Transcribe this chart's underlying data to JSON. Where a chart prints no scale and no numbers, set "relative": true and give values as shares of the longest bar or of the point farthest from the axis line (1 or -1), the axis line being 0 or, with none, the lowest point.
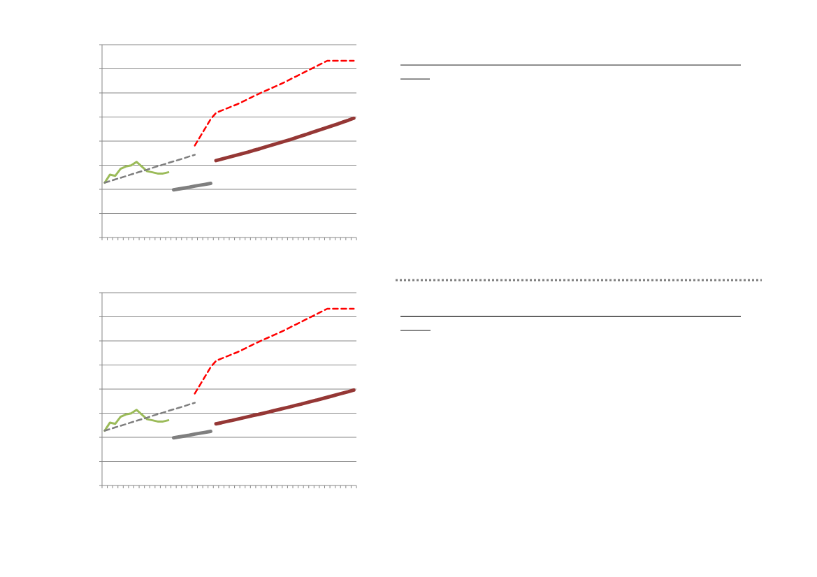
{
  "chart_data": [
    {
      "type": "line",
      "relative": true,
      "grid": "y",
      "categories": [
        null,
        null,
        null,
        null,
        null,
        null,
        null,
        null,
        null,
        null,
        null,
        null,
        null,
        null,
        null,
        null,
        null,
        null,
        null,
        null,
        null,
        null,
        null,
        null,
        null,
        null,
        null,
        null,
        null,
        null,
        null,
        null,
        null,
        null,
        null,
        null,
        null,
        null,
        null,
        null,
        null,
        null,
        null,
        null,
        null,
        null,
        null,
        null
      ],
      "series": [
        {
          "color": "#9bbb59",
          "line_style": "solid",
          "values": [
            0.31,
            0.356,
            0.349,
            0.389,
            0.402,
            0.408,
            0.428,
            0.402,
            0.375,
            0.369,
            0.362,
            0.362,
            0.369,
            null,
            null,
            null,
            null,
            null,
            null,
            null,
            null,
            null,
            null,
            null,
            null,
            null,
            null,
            null,
            null,
            null,
            null,
            null,
            null,
            null,
            null,
            null,
            null,
            null,
            null,
            null,
            null,
            null,
            null,
            null,
            null,
            null,
            null,
            null
          ]
        },
        {
          "color": "#7f7f7f",
          "line_style": "dashed",
          "values": [
            0.31,
            0.319,
            0.329,
            0.338,
            0.347,
            0.357,
            0.366,
            0.375,
            0.384,
            0.394,
            0.403,
            0.412,
            0.422,
            0.431,
            0.44,
            0.449,
            0.459,
            0.468,
            null,
            null,
            null,
            null,
            null,
            null,
            null,
            null,
            null,
            null,
            null,
            null,
            null,
            null,
            null,
            null,
            null,
            null,
            null,
            null,
            null,
            null,
            null,
            null,
            null,
            null,
            null,
            null,
            null,
            null
          ]
        },
        {
          "color": "#ff0000",
          "line_style": "dashed",
          "values": [
            null,
            null,
            null,
            null,
            null,
            null,
            null,
            null,
            null,
            null,
            null,
            null,
            null,
            null,
            null,
            null,
            null,
            0.52,
            0.57,
            0.62,
            0.67,
            0.705,
            0.718,
            0.73,
            0.742,
            0.754,
            0.768,
            0.783,
            0.798,
            0.812,
            0.826,
            0.839,
            0.852,
            0.865,
            0.88,
            0.895,
            0.91,
            0.925,
            0.94,
            0.955,
            0.97,
            0.985,
            1.0,
            1.0,
            1.0,
            1.0,
            1.0,
            1.0
          ]
        },
        {
          "color": "#7f7f7f",
          "line_style": "solid",
          "values": [
            null,
            null,
            null,
            null,
            null,
            null,
            null,
            null,
            null,
            null,
            null,
            null,
            null,
            0.27,
            0.275,
            0.28,
            0.285,
            0.291,
            0.296,
            0.301,
            0.306,
            null,
            null,
            null,
            null,
            null,
            null,
            null,
            null,
            null,
            null,
            null,
            null,
            null,
            null,
            null,
            null,
            null,
            null,
            null,
            null,
            null,
            null,
            null,
            null,
            null,
            null,
            null
          ]
        },
        {
          "color": "#953735",
          "line_style": "solid",
          "values": [
            null,
            null,
            null,
            null,
            null,
            null,
            null,
            null,
            null,
            null,
            null,
            null,
            null,
            null,
            null,
            null,
            null,
            null,
            null,
            null,
            null,
            0.435,
            0.443,
            0.451,
            0.459,
            0.467,
            0.475,
            0.483,
            0.492,
            0.5,
            0.509,
            0.518,
            0.527,
            0.536,
            0.545,
            0.554,
            0.564,
            0.574,
            0.583,
            0.593,
            0.603,
            0.613,
            0.623,
            0.633,
            0.643,
            0.654,
            0.664,
            0.675
          ]
        }
      ]
    },
    {
      "type": "line",
      "relative": true,
      "grid": "y",
      "categories": [
        null,
        null,
        null,
        null,
        null,
        null,
        null,
        null,
        null,
        null,
        null,
        null,
        null,
        null,
        null,
        null,
        null,
        null,
        null,
        null,
        null,
        null,
        null,
        null,
        null,
        null,
        null,
        null,
        null,
        null,
        null,
        null,
        null,
        null,
        null,
        null,
        null,
        null,
        null,
        null,
        null,
        null,
        null,
        null,
        null,
        null,
        null,
        null
      ],
      "series": [
        {
          "color": "#9bbb59",
          "line_style": "solid",
          "values": [
            0.31,
            0.356,
            0.349,
            0.389,
            0.402,
            0.408,
            0.428,
            0.402,
            0.375,
            0.369,
            0.362,
            0.362,
            0.369,
            null,
            null,
            null,
            null,
            null,
            null,
            null,
            null,
            null,
            null,
            null,
            null,
            null,
            null,
            null,
            null,
            null,
            null,
            null,
            null,
            null,
            null,
            null,
            null,
            null,
            null,
            null,
            null,
            null,
            null,
            null,
            null,
            null,
            null,
            null
          ]
        },
        {
          "color": "#7f7f7f",
          "line_style": "dashed",
          "values": [
            0.31,
            0.319,
            0.329,
            0.338,
            0.347,
            0.357,
            0.366,
            0.375,
            0.384,
            0.394,
            0.403,
            0.412,
            0.422,
            0.431,
            0.44,
            0.449,
            0.459,
            0.468,
            null,
            null,
            null,
            null,
            null,
            null,
            null,
            null,
            null,
            null,
            null,
            null,
            null,
            null,
            null,
            null,
            null,
            null,
            null,
            null,
            null,
            null,
            null,
            null,
            null,
            null,
            null,
            null,
            null,
            null
          ]
        },
        {
          "color": "#ff0000",
          "line_style": "dashed",
          "values": [
            null,
            null,
            null,
            null,
            null,
            null,
            null,
            null,
            null,
            null,
            null,
            null,
            null,
            null,
            null,
            null,
            null,
            0.52,
            0.57,
            0.62,
            0.67,
            0.705,
            0.718,
            0.73,
            0.742,
            0.754,
            0.768,
            0.783,
            0.798,
            0.812,
            0.826,
            0.839,
            0.852,
            0.865,
            0.88,
            0.895,
            0.91,
            0.925,
            0.94,
            0.955,
            0.97,
            0.985,
            1.0,
            1.0,
            1.0,
            1.0,
            1.0,
            1.0
          ]
        },
        {
          "color": "#7f7f7f",
          "line_style": "solid",
          "values": [
            null,
            null,
            null,
            null,
            null,
            null,
            null,
            null,
            null,
            null,
            null,
            null,
            null,
            0.27,
            0.275,
            0.28,
            0.285,
            0.291,
            0.296,
            0.301,
            0.306,
            null,
            null,
            null,
            null,
            null,
            null,
            null,
            null,
            null,
            null,
            null,
            null,
            null,
            null,
            null,
            null,
            null,
            null,
            null,
            null,
            null,
            null,
            null,
            null,
            null,
            null,
            null
          ]
        },
        {
          "color": "#953735",
          "line_style": "solid",
          "values": [
            null,
            null,
            null,
            null,
            null,
            null,
            null,
            null,
            null,
            null,
            null,
            null,
            null,
            null,
            null,
            null,
            null,
            null,
            null,
            null,
            null,
            0.349,
            0.355,
            0.362,
            0.368,
            0.375,
            0.382,
            0.389,
            0.396,
            0.402,
            0.409,
            0.416,
            0.424,
            0.431,
            0.438,
            0.445,
            0.453,
            0.46,
            0.468,
            0.476,
            0.483,
            0.491,
            0.499,
            0.507,
            0.515,
            0.523,
            0.531,
            0.54
          ]
        }
      ]
    }
  ]
}
